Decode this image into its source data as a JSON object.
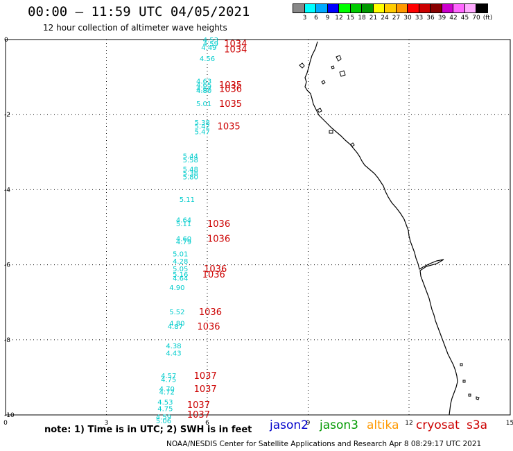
{
  "header": {
    "title": "00:00 – 11:59 UTC 04/05/2021",
    "subtitle": "12 hour collection of altimeter wave heights"
  },
  "legend": {
    "colors": [
      "#888888",
      "#00ffff",
      "#00aaff",
      "#0000ff",
      "#00ff00",
      "#00cc00",
      "#009900",
      "#ffff00",
      "#ffcc00",
      "#ff9900",
      "#ff0000",
      "#cc0000",
      "#880000",
      "#cc00cc",
      "#ff66ff",
      "#ffaaff",
      "#000000"
    ],
    "labels": [
      "3",
      "6",
      "9",
      "12",
      "15",
      "18",
      "21",
      "24",
      "27",
      "30",
      "33",
      "36",
      "39",
      "42",
      "45",
      "70",
      "(ft)"
    ]
  },
  "axes": {
    "x_ticks": [
      "0",
      "3",
      "6",
      "9",
      "12",
      "15"
    ],
    "y_ticks": [
      "0",
      "-2",
      "-4",
      "-6",
      "-8",
      "-10"
    ]
  },
  "footer": {
    "note": "note:  1) Time is in UTC;  2) SWH is in feet",
    "credit": "NOAA/NESDIS Center for Satellite Applications and Research    Apr  8 08:29:17 UTC 2021"
  },
  "satellites": [
    {
      "name": "jason2",
      "color": "#0000cc"
    },
    {
      "name": "jason3",
      "color": "#009900"
    },
    {
      "name": "altika",
      "color": "#ff9900"
    },
    {
      "name": "cryosat",
      "color": "#cc0000"
    },
    {
      "name": "s3a",
      "color": "#cc0000"
    }
  ],
  "waves": [
    {
      "lon": 6.1,
      "lat": -0.0,
      "v": "4.53"
    },
    {
      "lon": 6.1,
      "lat": -0.1,
      "v": "4.59"
    },
    {
      "lon": 6.05,
      "lat": -0.2,
      "v": "4.49"
    },
    {
      "lon": 6.0,
      "lat": -0.5,
      "v": "4.56"
    },
    {
      "lon": 5.9,
      "lat": -1.1,
      "v": "4.63"
    },
    {
      "lon": 5.9,
      "lat": -1.2,
      "v": "4.65"
    },
    {
      "lon": 5.9,
      "lat": -1.3,
      "v": "4.67"
    },
    {
      "lon": 5.9,
      "lat": -1.35,
      "v": "4.80"
    },
    {
      "lon": 5.9,
      "lat": -1.7,
      "v": "5.01"
    },
    {
      "lon": 5.85,
      "lat": -2.2,
      "v": "5.38"
    },
    {
      "lon": 5.85,
      "lat": -2.3,
      "v": "5.42"
    },
    {
      "lon": 5.85,
      "lat": -2.45,
      "v": "5.47"
    },
    {
      "lon": 5.5,
      "lat": -3.1,
      "v": "5.44"
    },
    {
      "lon": 5.5,
      "lat": -3.2,
      "v": "5.58"
    },
    {
      "lon": 5.5,
      "lat": -3.45,
      "v": "5.48"
    },
    {
      "lon": 5.5,
      "lat": -3.55,
      "v": "5.38"
    },
    {
      "lon": 5.5,
      "lat": -3.65,
      "v": "5.80"
    },
    {
      "lon": 5.4,
      "lat": -4.25,
      "v": "5.11"
    },
    {
      "lon": 5.3,
      "lat": -4.8,
      "v": "4.64"
    },
    {
      "lon": 5.3,
      "lat": -4.9,
      "v": "5.11"
    },
    {
      "lon": 5.3,
      "lat": -5.3,
      "v": "4.60"
    },
    {
      "lon": 5.3,
      "lat": -5.38,
      "v": "4.79"
    },
    {
      "lon": 5.2,
      "lat": -5.7,
      "v": "5.01"
    },
    {
      "lon": 5.2,
      "lat": -5.9,
      "v": "4.28"
    },
    {
      "lon": 5.2,
      "lat": -6.1,
      "v": "5.05"
    },
    {
      "lon": 5.2,
      "lat": -6.25,
      "v": "5.16"
    },
    {
      "lon": 5.2,
      "lat": -6.35,
      "v": "4.64"
    },
    {
      "lon": 5.1,
      "lat": -6.6,
      "v": "4.90"
    },
    {
      "lon": 5.1,
      "lat": -7.25,
      "v": "5.52"
    },
    {
      "lon": 5.1,
      "lat": -7.55,
      "v": "4.80"
    },
    {
      "lon": 5.05,
      "lat": -7.63,
      "v": "4.87"
    },
    {
      "lon": 5.0,
      "lat": -8.15,
      "v": "4.38"
    },
    {
      "lon": 5.0,
      "lat": -8.35,
      "v": "4.43"
    },
    {
      "lon": 4.85,
      "lat": -8.95,
      "v": "4.57"
    },
    {
      "lon": 4.85,
      "lat": -9.05,
      "v": "4.75"
    },
    {
      "lon": 4.8,
      "lat": -9.3,
      "v": "4.70"
    },
    {
      "lon": 4.8,
      "lat": -9.38,
      "v": "4.72"
    },
    {
      "lon": 4.75,
      "lat": -9.65,
      "v": "4.53"
    },
    {
      "lon": 4.75,
      "lat": -9.82,
      "v": "4.75"
    },
    {
      "lon": 4.7,
      "lat": -10.05,
      "v": "4.59"
    },
    {
      "lon": 4.7,
      "lat": -10.15,
      "v": "5.06"
    }
  ],
  "pressures": [
    {
      "lon": 6.5,
      "lat": -0.1,
      "v": "1034"
    },
    {
      "lon": 6.5,
      "lat": -0.25,
      "v": "1034"
    },
    {
      "lon": 6.35,
      "lat": -1.2,
      "v": "1035"
    },
    {
      "lon": 6.35,
      "lat": -1.3,
      "v": "1036"
    },
    {
      "lon": 6.35,
      "lat": -1.7,
      "v": "1035"
    },
    {
      "lon": 6.3,
      "lat": -2.3,
      "v": "1035"
    },
    {
      "lon": 6.0,
      "lat": -4.9,
      "v": "1036"
    },
    {
      "lon": 6.0,
      "lat": -5.3,
      "v": "1036"
    },
    {
      "lon": 5.9,
      "lat": -6.1,
      "v": "1036"
    },
    {
      "lon": 5.85,
      "lat": -6.25,
      "v": "1036"
    },
    {
      "lon": 5.75,
      "lat": -7.25,
      "v": "1036"
    },
    {
      "lon": 5.7,
      "lat": -7.63,
      "v": "1036"
    },
    {
      "lon": 5.6,
      "lat": -8.95,
      "v": "1037"
    },
    {
      "lon": 5.6,
      "lat": -9.3,
      "v": "1037"
    },
    {
      "lon": 5.4,
      "lat": -9.72,
      "v": "1037"
    },
    {
      "lon": 5.4,
      "lat": -9.98,
      "v": "1037"
    }
  ]
}
